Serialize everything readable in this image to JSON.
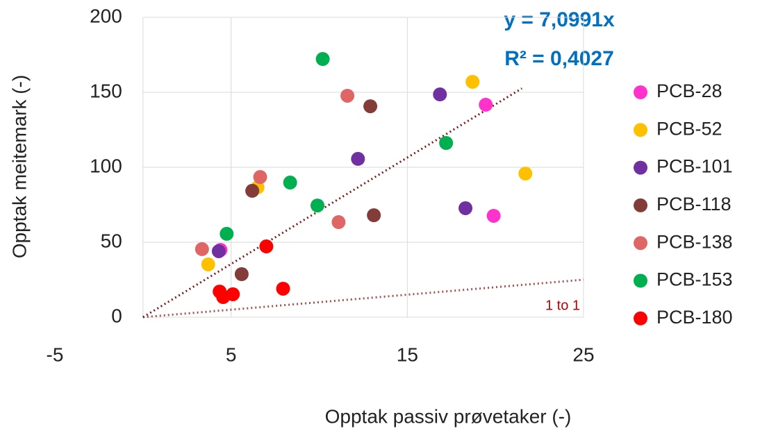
{
  "chart_data": {
    "type": "scatter",
    "x_label": "Opptak passiv prøvetaker (-)",
    "y_label": "Opptak meitemark (-)",
    "annotations": [
      "y = 7,0991x",
      "R² = 0,4027"
    ],
    "xlim": [
      -5,
      25
    ],
    "xticks": [
      -5,
      5,
      15,
      25
    ],
    "ylim": [
      0,
      200
    ],
    "yticks": [
      0,
      50,
      100,
      150,
      200
    ],
    "grid": true,
    "legend": "right",
    "series": [
      {
        "name": "PCB-28",
        "color": "#ff33cc",
        "x": [
          19.45,
          19.9,
          4.4
        ],
        "values": [
          141.7,
          67.6,
          44.9
        ]
      },
      {
        "name": "PCB-52",
        "color": "#ffc000",
        "x": [
          18.7,
          21.7,
          6.5,
          3.7
        ],
        "values": [
          157,
          95.8,
          86.6,
          35.2
        ]
      },
      {
        "name": "PCB-101",
        "color": "#7030a0",
        "x": [
          16.85,
          12.2,
          18.3,
          4.3
        ],
        "values": [
          148.6,
          105.6,
          72.7,
          44
        ]
      },
      {
        "name": "PCB-118",
        "color": "#843c39",
        "x": [
          12.9,
          13.1,
          6.2,
          5.6
        ],
        "values": [
          140.7,
          68,
          84.3,
          28.7
        ]
      },
      {
        "name": "PCB-138",
        "color": "#e06666",
        "x": [
          11.6,
          6.65,
          11.1,
          3.35
        ],
        "values": [
          147.7,
          93.5,
          63.4,
          45.4
        ]
      },
      {
        "name": "PCB-153",
        "color": "#00b050",
        "x": [
          10.2,
          17.2,
          8.35,
          9.9,
          4.75
        ],
        "values": [
          172.2,
          116.2,
          89.8,
          74.5,
          55.6
        ]
      },
      {
        "name": "PCB-180",
        "color": "#ff0000",
        "x": [
          7.0,
          7.95,
          4.35,
          4.55,
          5.1
        ],
        "values": [
          47.2,
          19,
          17.1,
          13.4,
          15.3
        ]
      }
    ],
    "trendline": {
      "color": "#7b1a1a",
      "x": [
        0,
        21.5
      ],
      "values": [
        0,
        152.6
      ]
    },
    "reference_line": {
      "label": "1 to 1",
      "color": "#a05050",
      "x": [
        0,
        25
      ],
      "values": [
        0,
        25
      ]
    }
  }
}
